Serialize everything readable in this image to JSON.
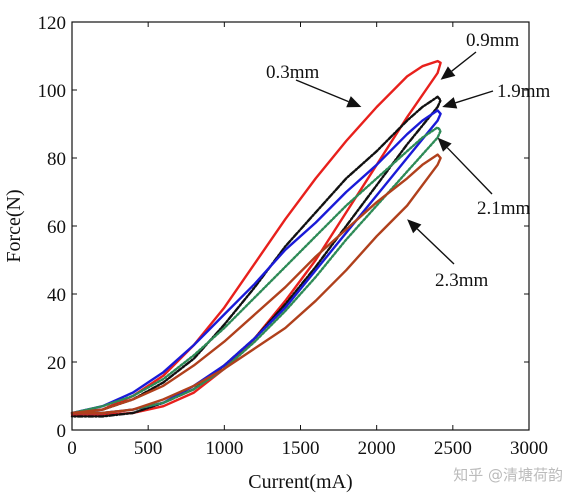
{
  "watermark": "知乎 @清塘荷韵",
  "chart_data": {
    "type": "line",
    "title": "",
    "xlabel": "Current(mA)",
    "ylabel": "Force(N)",
    "xlim": [
      0,
      3000
    ],
    "ylim": [
      0,
      120
    ],
    "xticks": [
      0,
      500,
      1000,
      1500,
      2000,
      2500,
      3000
    ],
    "yticks": [
      0,
      20,
      40,
      60,
      80,
      100,
      120
    ],
    "grid": false,
    "legend": "none",
    "series": [
      {
        "name": "0.3mm",
        "color": "#e8201c",
        "style": "solid",
        "x": [
          0,
          200,
          400,
          600,
          800,
          1000,
          1200,
          1400,
          1600,
          1800,
          2000,
          2200,
          2300,
          2400,
          2420,
          2400,
          2200,
          2000,
          1800,
          1600,
          1400,
          1200,
          1000,
          800,
          600,
          400,
          200,
          0
        ],
        "y": [
          5,
          6,
          10,
          16,
          25,
          36,
          49,
          62,
          74,
          85,
          95,
          104,
          107,
          108.5,
          108,
          105,
          92,
          78,
          64,
          50,
          38,
          27,
          18,
          11,
          7,
          5,
          4.5,
          4.5
        ]
      },
      {
        "name": "0.9mm",
        "color": "#111111",
        "style": "dashdot",
        "x": [
          0,
          200,
          400,
          600,
          800,
          1000,
          1200,
          1400,
          1600,
          1800,
          2000,
          2200,
          2300,
          2400,
          2420,
          2400,
          2200,
          2000,
          1800,
          1600,
          1400,
          1200,
          1000,
          800,
          600,
          400,
          200,
          0
        ],
        "y": [
          5,
          6,
          9,
          14,
          21,
          31,
          42,
          54,
          64,
          74,
          82,
          91,
          95,
          98,
          97,
          95,
          84,
          72,
          60,
          48,
          37,
          27,
          19,
          12,
          8,
          5,
          4,
          4
        ]
      },
      {
        "name": "1.9mm",
        "color": "#1a1ad8",
        "style": "solid",
        "x": [
          0,
          200,
          400,
          600,
          800,
          1000,
          1200,
          1400,
          1600,
          1800,
          2000,
          2200,
          2300,
          2400,
          2420,
          2400,
          2200,
          2000,
          1800,
          1600,
          1400,
          1200,
          1000,
          800,
          600,
          400,
          200,
          0
        ],
        "y": [
          5,
          7,
          11,
          17,
          25,
          34,
          43,
          53,
          61,
          70,
          78,
          87,
          91,
          94,
          93,
          91,
          80,
          69,
          58,
          47,
          36,
          27,
          19,
          13,
          8,
          6,
          5,
          5
        ]
      },
      {
        "name": "2.1mm",
        "color": "#2e8b57",
        "style": "dotted",
        "x": [
          0,
          200,
          400,
          600,
          800,
          1000,
          1200,
          1400,
          1600,
          1800,
          2000,
          2200,
          2300,
          2400,
          2420,
          2400,
          2200,
          2000,
          1800,
          1600,
          1400,
          1200,
          1000,
          800,
          600,
          400,
          200,
          0
        ],
        "y": [
          5,
          7,
          10,
          15,
          22,
          30,
          39,
          48,
          57,
          66,
          74,
          82,
          86,
          89,
          88,
          86,
          76,
          66,
          56,
          45,
          35,
          26,
          18,
          12,
          8,
          6,
          5,
          5
        ]
      },
      {
        "name": "2.3mm",
        "color": "#b0401c",
        "style": "solid",
        "x": [
          0,
          200,
          400,
          600,
          800,
          1000,
          1200,
          1400,
          1600,
          1800,
          2000,
          2200,
          2300,
          2400,
          2420,
          2400,
          2200,
          2000,
          1800,
          1600,
          1400,
          1200,
          1000,
          800,
          600,
          400,
          200,
          0
        ],
        "y": [
          5,
          6,
          9,
          13,
          19,
          26,
          34,
          42,
          51,
          59,
          67,
          74,
          78,
          81,
          80,
          78,
          66,
          57,
          47,
          38,
          30,
          24,
          18,
          13,
          9,
          6,
          5,
          5
        ]
      }
    ],
    "annotations": [
      {
        "text": "0.3mm",
        "target": [
          1900,
          95
        ]
      },
      {
        "text": "0.9mm",
        "target": [
          2420,
          103
        ]
      },
      {
        "text": "1.9mm",
        "target": [
          2430,
          95
        ]
      },
      {
        "text": "2.1mm",
        "target": [
          2400,
          86
        ]
      },
      {
        "text": "2.3mm",
        "target": [
          2200,
          62
        ]
      }
    ]
  }
}
